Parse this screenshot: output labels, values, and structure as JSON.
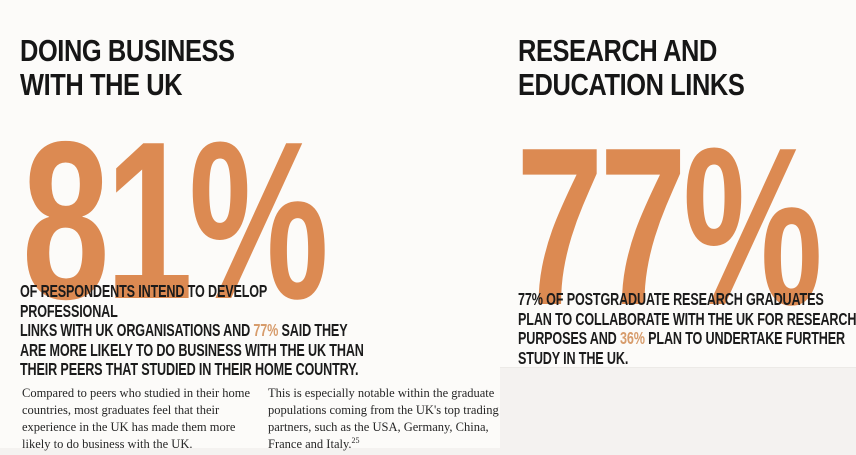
{
  "colors": {
    "accent_orange": "#DC8A52",
    "accent_orange_light": "#D79C6C",
    "ink": "#1B1B1B",
    "background": "#FCFBF9",
    "panel_gray": "#F4F2F0"
  },
  "left_section": {
    "heading": "DOING BUSINESS\nWITH THE UK",
    "big_stat": "81%",
    "statement": {
      "prefix": "OF RESPONDENTS INTEND TO DEVELOP PROFESSIONAL\nLINKS WITH UK ORGANISATIONS AND ",
      "highlight": "77%",
      "suffix": " SAID THEY\nARE MORE LIKELY TO DO BUSINESS WITH THE UK THAN\nTHEIR PEERS THAT STUDIED IN THEIR HOME COUNTRY."
    },
    "body_columns": [
      {
        "text": "Compared to peers who studied in their home\ncountries, most graduates feel that their\nexperience in the UK has made them more\nlikely to do business with the UK."
      },
      {
        "text": "This is especially notable within the graduate\npopulations coming from the UK's top trading\npartners, such as the USA, Germany, China,\nFrance and Italy.",
        "footnote_marker": "25"
      }
    ]
  },
  "right_section": {
    "heading": "RESEARCH AND\nEDUCATION LINKS",
    "big_stat": "77%",
    "statement": {
      "prefix": "77% OF POSTGRADUATE RESEARCH GRADUATES\nPLAN TO COLLABORATE WITH THE UK FOR RESEARCH\nPURPOSES AND ",
      "highlight": "36%",
      "suffix": " PLAN TO UNDERTAKE FURTHER\nSTUDY IN THE UK."
    }
  }
}
